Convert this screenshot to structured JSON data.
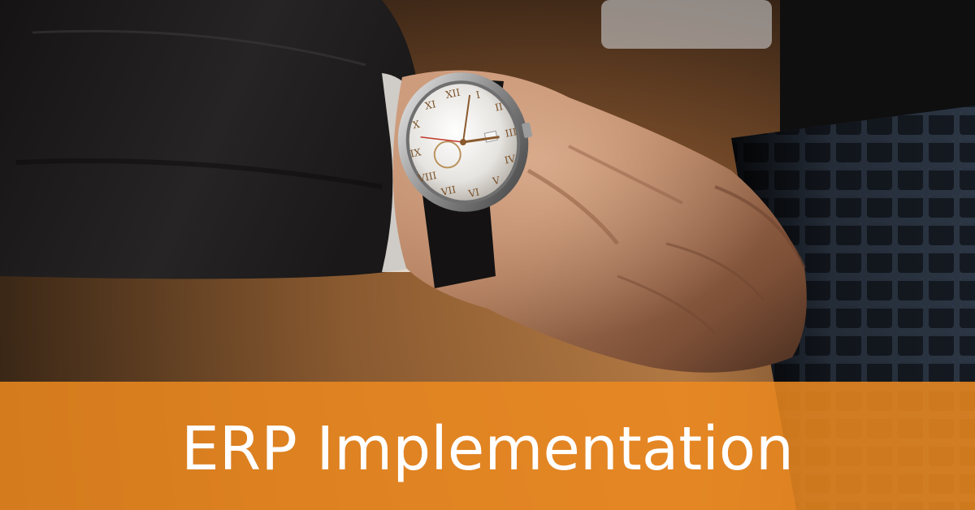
{
  "banner": {
    "title": "ERP Implementation",
    "color": "#ED8920",
    "text_color": "#FFFFFF"
  },
  "scene": {
    "subject": "wristwatch-on-wrist",
    "watch_face": {
      "numerals": [
        "XII",
        "I",
        "II",
        "III",
        "IV",
        "V",
        "VI",
        "VII",
        "VIII",
        "IX",
        "X",
        "XI"
      ]
    }
  }
}
